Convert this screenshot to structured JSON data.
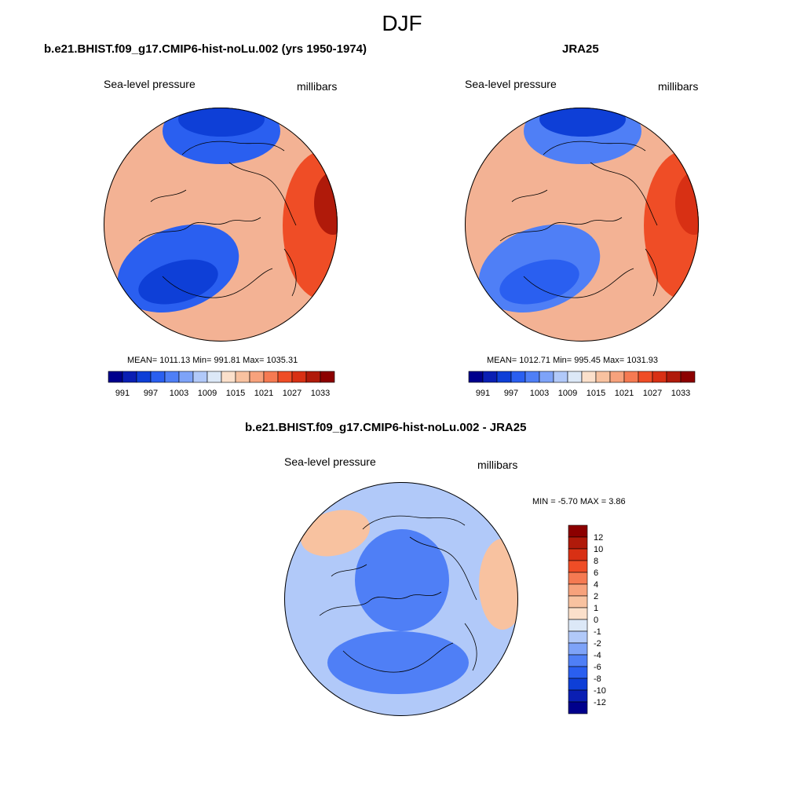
{
  "figure": {
    "title": "DJF"
  },
  "chart_data": [
    {
      "type": "heatmap",
      "projection": "polar-stereographic",
      "title": "b.e21.BHIST.f09_g17.CMIP6-hist-noLu.002 (yrs 1950-1974)",
      "variable": "Sea-level pressure",
      "units": "millibars",
      "stats": {
        "mean": 1011.13,
        "min": 991.81,
        "max": 1035.31,
        "text": "MEAN= 1011.13  Min= 991.81  Max= 1035.31"
      },
      "colorbar": {
        "orientation": "horizontal",
        "levels": [
          991,
          994,
          997,
          1000,
          1003,
          1006,
          1009,
          1012,
          1015,
          1018,
          1021,
          1024,
          1027,
          1030,
          1033
        ],
        "tick_labels": [
          "991",
          "997",
          "1003",
          "1009",
          "1015",
          "1021",
          "1027",
          "1033"
        ],
        "colors": [
          "#00008c",
          "#0a1fb3",
          "#0e3fd7",
          "#2a5ff0",
          "#4f7ff6",
          "#7ea3f8",
          "#b1c9f9",
          "#dce8f7",
          "#fbe0cb",
          "#f8c2a0",
          "#f7a27c",
          "#f57a52",
          "#ef4d26",
          "#d83014",
          "#b01a0a",
          "#8c0000"
        ]
      },
      "fields": {
        "background": "#f3b294",
        "blobs": [
          {
            "name": "pacific-low",
            "color": "#2a5ff0",
            "level": 1000
          },
          {
            "name": "pacific-low-core",
            "color": "#0e3fd7",
            "level": 994
          },
          {
            "name": "icelandic-low",
            "color": "#2a5ff0",
            "level": 1000
          },
          {
            "name": "icelandic-low-core",
            "color": "#0e3fd7",
            "level": 994
          },
          {
            "name": "siberian-high",
            "color": "#ef4d26",
            "level": 1027
          },
          {
            "name": "siberian-high-core",
            "color": "#b01a0a",
            "level": 1033
          }
        ]
      }
    },
    {
      "type": "heatmap",
      "projection": "polar-stereographic",
      "title": "JRA25",
      "variable": "Sea-level pressure",
      "units": "millibars",
      "stats": {
        "mean": 1012.71,
        "min": 995.45,
        "max": 1031.93,
        "text": "MEAN= 1012.71  Min= 995.45  Max= 1031.93"
      },
      "colorbar": {
        "orientation": "horizontal",
        "levels": [
          991,
          994,
          997,
          1000,
          1003,
          1006,
          1009,
          1012,
          1015,
          1018,
          1021,
          1024,
          1027,
          1030,
          1033
        ],
        "tick_labels": [
          "991",
          "997",
          "1003",
          "1009",
          "1015",
          "1021",
          "1027",
          "1033"
        ],
        "colors": [
          "#00008c",
          "#0a1fb3",
          "#0e3fd7",
          "#2a5ff0",
          "#4f7ff6",
          "#7ea3f8",
          "#b1c9f9",
          "#dce8f7",
          "#fbe0cb",
          "#f8c2a0",
          "#f7a27c",
          "#f57a52",
          "#ef4d26",
          "#d83014",
          "#b01a0a",
          "#8c0000"
        ]
      },
      "fields": {
        "background": "#f3b294",
        "blobs": [
          {
            "name": "pacific-low",
            "color": "#4f7ff6",
            "level": 1003
          },
          {
            "name": "pacific-low-core",
            "color": "#2a5ff0",
            "level": 997
          },
          {
            "name": "icelandic-low",
            "color": "#4f7ff6",
            "level": 1003
          },
          {
            "name": "icelandic-low-core",
            "color": "#0e3fd7",
            "level": 997
          },
          {
            "name": "siberian-high",
            "color": "#ef4d26",
            "level": 1027
          },
          {
            "name": "siberian-high-core",
            "color": "#d83014",
            "level": 1030
          }
        ]
      }
    },
    {
      "type": "heatmap",
      "projection": "polar-stereographic",
      "title": "b.e21.BHIST.f09_g17.CMIP6-hist-noLu.002 - JRA25",
      "variable": "Sea-level pressure",
      "units": "millibars",
      "stats": {
        "min": -5.7,
        "max": 3.86,
        "text": "MIN =  -5.70 MAX =   3.86"
      },
      "colorbar": {
        "orientation": "vertical",
        "levels": [
          -12,
          -10,
          -8,
          -6,
          -4,
          -2,
          -1,
          0,
          1,
          2,
          4,
          6,
          8,
          10,
          12
        ],
        "tick_labels": [
          "12",
          "10",
          "8",
          "6",
          "4",
          "2",
          "1",
          "0",
          "-1",
          "-2",
          "-4",
          "-6",
          "-8",
          "-10",
          "-12"
        ],
        "colors": [
          "#8c0000",
          "#b01a0a",
          "#d83014",
          "#ef4d26",
          "#f57a52",
          "#f7a27c",
          "#f8c2a0",
          "#fbe0cb",
          "#dce8f7",
          "#b1c9f9",
          "#7ea3f8",
          "#4f7ff6",
          "#2a5ff0",
          "#0e3fd7",
          "#0a1fb3",
          "#00008c"
        ]
      },
      "fields": {
        "background": "#b1c9f9",
        "blobs": [
          {
            "name": "arctic-negative",
            "color": "#4f7ff6",
            "level": -4
          },
          {
            "name": "atlantic-negative",
            "color": "#4f7ff6",
            "level": -4
          },
          {
            "name": "pacific-positive",
            "color": "#f8c2a0",
            "level": 2
          },
          {
            "name": "siberia-positive",
            "color": "#f8c2a0",
            "level": 2
          }
        ]
      }
    }
  ]
}
